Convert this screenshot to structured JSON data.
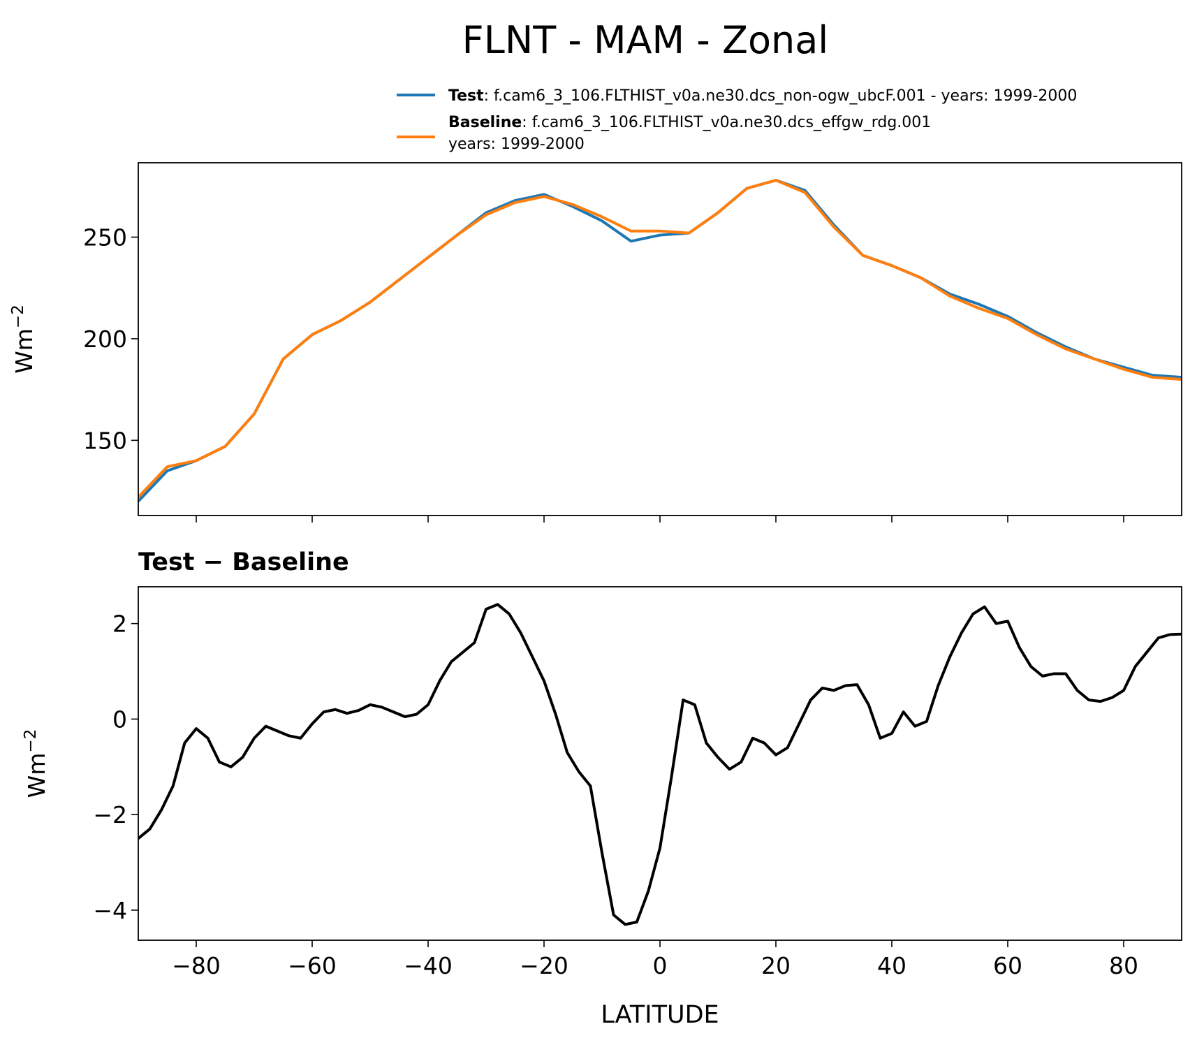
{
  "chart_data": [
    {
      "type": "line",
      "title": "FLNT - MAM - Zonal",
      "ylabel": {
        "base": "Wm",
        "sup": "−2"
      },
      "x": [
        -90,
        -85,
        -80,
        -75,
        -70,
        -65,
        -60,
        -55,
        -50,
        -45,
        -40,
        -35,
        -30,
        -25,
        -20,
        -15,
        -10,
        -5,
        0,
        5,
        10,
        15,
        20,
        25,
        30,
        35,
        40,
        45,
        50,
        55,
        60,
        65,
        70,
        75,
        80,
        85,
        90
      ],
      "series": [
        {
          "name": "Test",
          "description": [
            ": f.cam6_3_106.FLTHIST_v0a.ne30.dcs_non-ogw_ubcF.001 - years: 1999-2000"
          ],
          "color": "#1f77b4",
          "values": [
            120,
            135,
            140,
            147,
            163,
            190,
            202,
            209,
            218,
            229,
            240,
            251,
            262,
            268,
            271,
            265,
            258,
            248,
            251,
            252,
            262,
            274,
            278,
            273,
            256,
            241,
            236,
            230,
            222,
            217,
            211,
            203,
            196,
            190,
            186,
            182,
            181
          ]
        },
        {
          "name": "Baseline",
          "description": [
            ": f.cam6_3_106.FLTHIST_v0a.ne30.dcs_effgw_rdg.001",
            "years: 1999-2000"
          ],
          "color": "#ff7f0e",
          "values": [
            122,
            137,
            140,
            147,
            163,
            190,
            202,
            209,
            218,
            229,
            240,
            251,
            261,
            267,
            270,
            266,
            260,
            253,
            253,
            252,
            262,
            274,
            278,
            272,
            255,
            241,
            236,
            230,
            221,
            215,
            210,
            202,
            195,
            190,
            185,
            181,
            180
          ]
        }
      ],
      "xlim": [
        -90,
        90
      ],
      "xticks": [
        -80,
        -60,
        -40,
        -20,
        0,
        20,
        40,
        60,
        80
      ],
      "ylim": [
        113,
        286.6
      ],
      "yticks": [
        150,
        200,
        250
      ]
    },
    {
      "type": "line",
      "title": "Test − Baseline",
      "xlabel": "LATITUDE",
      "ylabel": {
        "base": "Wm",
        "sup": "−2"
      },
      "color": "#000000",
      "x": [
        -90,
        -88,
        -86,
        -84,
        -82,
        -80,
        -78,
        -76,
        -74,
        -72,
        -70,
        -68,
        -66,
        -64,
        -62,
        -60,
        -58,
        -56,
        -54,
        -52,
        -50,
        -48,
        -46,
        -44,
        -42,
        -40,
        -38,
        -36,
        -34,
        -32,
        -30,
        -28,
        -26,
        -24,
        -22,
        -20,
        -18,
        -16,
        -14,
        -12,
        -10,
        -8,
        -6,
        -4,
        -2,
        0,
        2,
        4,
        6,
        8,
        10,
        12,
        14,
        16,
        18,
        20,
        22,
        24,
        26,
        28,
        30,
        32,
        34,
        36,
        38,
        40,
        42,
        44,
        46,
        48,
        50,
        52,
        54,
        56,
        58,
        60,
        62,
        64,
        66,
        68,
        70,
        72,
        74,
        76,
        78,
        80,
        82,
        84,
        86,
        88,
        90
      ],
      "values": [
        -2.5,
        -2.3,
        -1.9,
        -1.4,
        -0.5,
        -0.2,
        -0.4,
        -0.9,
        -1.0,
        -0.8,
        -0.4,
        -0.15,
        -0.25,
        -0.35,
        -0.4,
        -0.1,
        0.15,
        0.2,
        0.12,
        0.18,
        0.3,
        0.25,
        0.15,
        0.05,
        0.1,
        0.3,
        0.8,
        1.2,
        1.4,
        1.6,
        2.3,
        2.4,
        2.2,
        1.8,
        1.3,
        0.8,
        0.1,
        -0.7,
        -1.1,
        -1.4,
        -2.8,
        -4.1,
        -4.3,
        -4.25,
        -3.6,
        -2.7,
        -1.2,
        0.4,
        0.3,
        -0.5,
        -0.8,
        -1.05,
        -0.9,
        -0.4,
        -0.5,
        -0.75,
        -0.6,
        -0.1,
        0.4,
        0.65,
        0.6,
        0.7,
        0.72,
        0.3,
        -0.4,
        -0.3,
        0.15,
        -0.15,
        -0.05,
        0.7,
        1.3,
        1.8,
        2.2,
        2.35,
        2.0,
        2.05,
        1.5,
        1.1,
        0.9,
        0.95,
        0.95,
        0.6,
        0.4,
        0.37,
        0.45,
        0.6,
        1.1,
        1.4,
        1.7,
        1.77,
        1.78
      ],
      "xlim": [
        -90,
        90
      ],
      "xticks": [
        {
          "value": -80,
          "label": "−80"
        },
        {
          "value": -60,
          "label": "−60"
        },
        {
          "value": -40,
          "label": "−40"
        },
        {
          "value": -20,
          "label": "−20"
        },
        0,
        20,
        40,
        60,
        80
      ],
      "ylim": [
        -4.63,
        2.77
      ],
      "yticks": [
        {
          "value": -4,
          "label": "−4"
        },
        {
          "value": -2,
          "label": "−2"
        },
        0,
        2
      ]
    }
  ]
}
